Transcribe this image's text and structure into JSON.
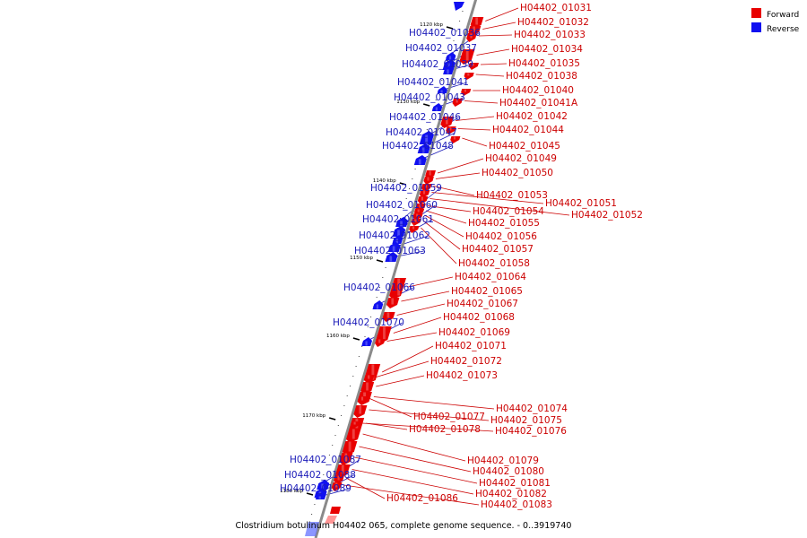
{
  "caption": "Clostridium botulinum H04402 065, complete genome sequence. - 0..3919740",
  "colors": {
    "forward": "#e80000",
    "reverse": "#1010f0",
    "forward_line": "#cc0000",
    "reverse_line": "#1a1ab8",
    "axis": "#8a8a8a"
  },
  "legend": [
    {
      "label": "Forward",
      "color": "#e80000"
    },
    {
      "label": "Reverse",
      "color": "#1010f0"
    }
  ],
  "ticks": [
    "1120 kbp",
    "1130 kbp",
    "1140 kbp",
    "1150 kbp",
    "1160 kbp",
    "1170 kbp",
    "1180 kbp"
  ],
  "forward_genes": [
    "H04402_01031",
    "H04402_01032",
    "H04402_01033",
    "H04402_01034",
    "H04402_01035",
    "H04402_01038",
    "H04402_01040",
    "H04402_01041A",
    "H04402_01042",
    "H04402_01044",
    "H04402_01045",
    "H04402_01049",
    "H04402_01050",
    "H04402_01053",
    "H04402_01051",
    "H04402_01052",
    "H04402_01054",
    "H04402_01055",
    "H04402_01056",
    "H04402_01057",
    "H04402_01058",
    "H04402_01064",
    "H04402_01065",
    "H04402_01067",
    "H04402_01068",
    "H04402_01069",
    "H04402_01071",
    "H04402_01072",
    "H04402_01073",
    "H04402_01074",
    "H04402_01077",
    "H04402_01075",
    "H04402_01078",
    "H04402_01076",
    "H04402_01079",
    "H04402_01080",
    "H04402_01081",
    "H04402_01082",
    "H04402_01086",
    "H04402_01083"
  ],
  "reverse_genes": [
    "H04402_01036",
    "H04402_01037",
    "H04402_01039",
    "H04402_01041",
    "H04402_01043",
    "H04402_01046",
    "H04402_01047",
    "H04402_01048",
    "H04402_01059",
    "H04402_01060",
    "H04402_01061",
    "H04402_01062",
    "H04402_01063",
    "H04402_01066",
    "H04402_01070",
    "H04402_01087",
    "H04402_01088",
    "H04402_01089"
  ]
}
